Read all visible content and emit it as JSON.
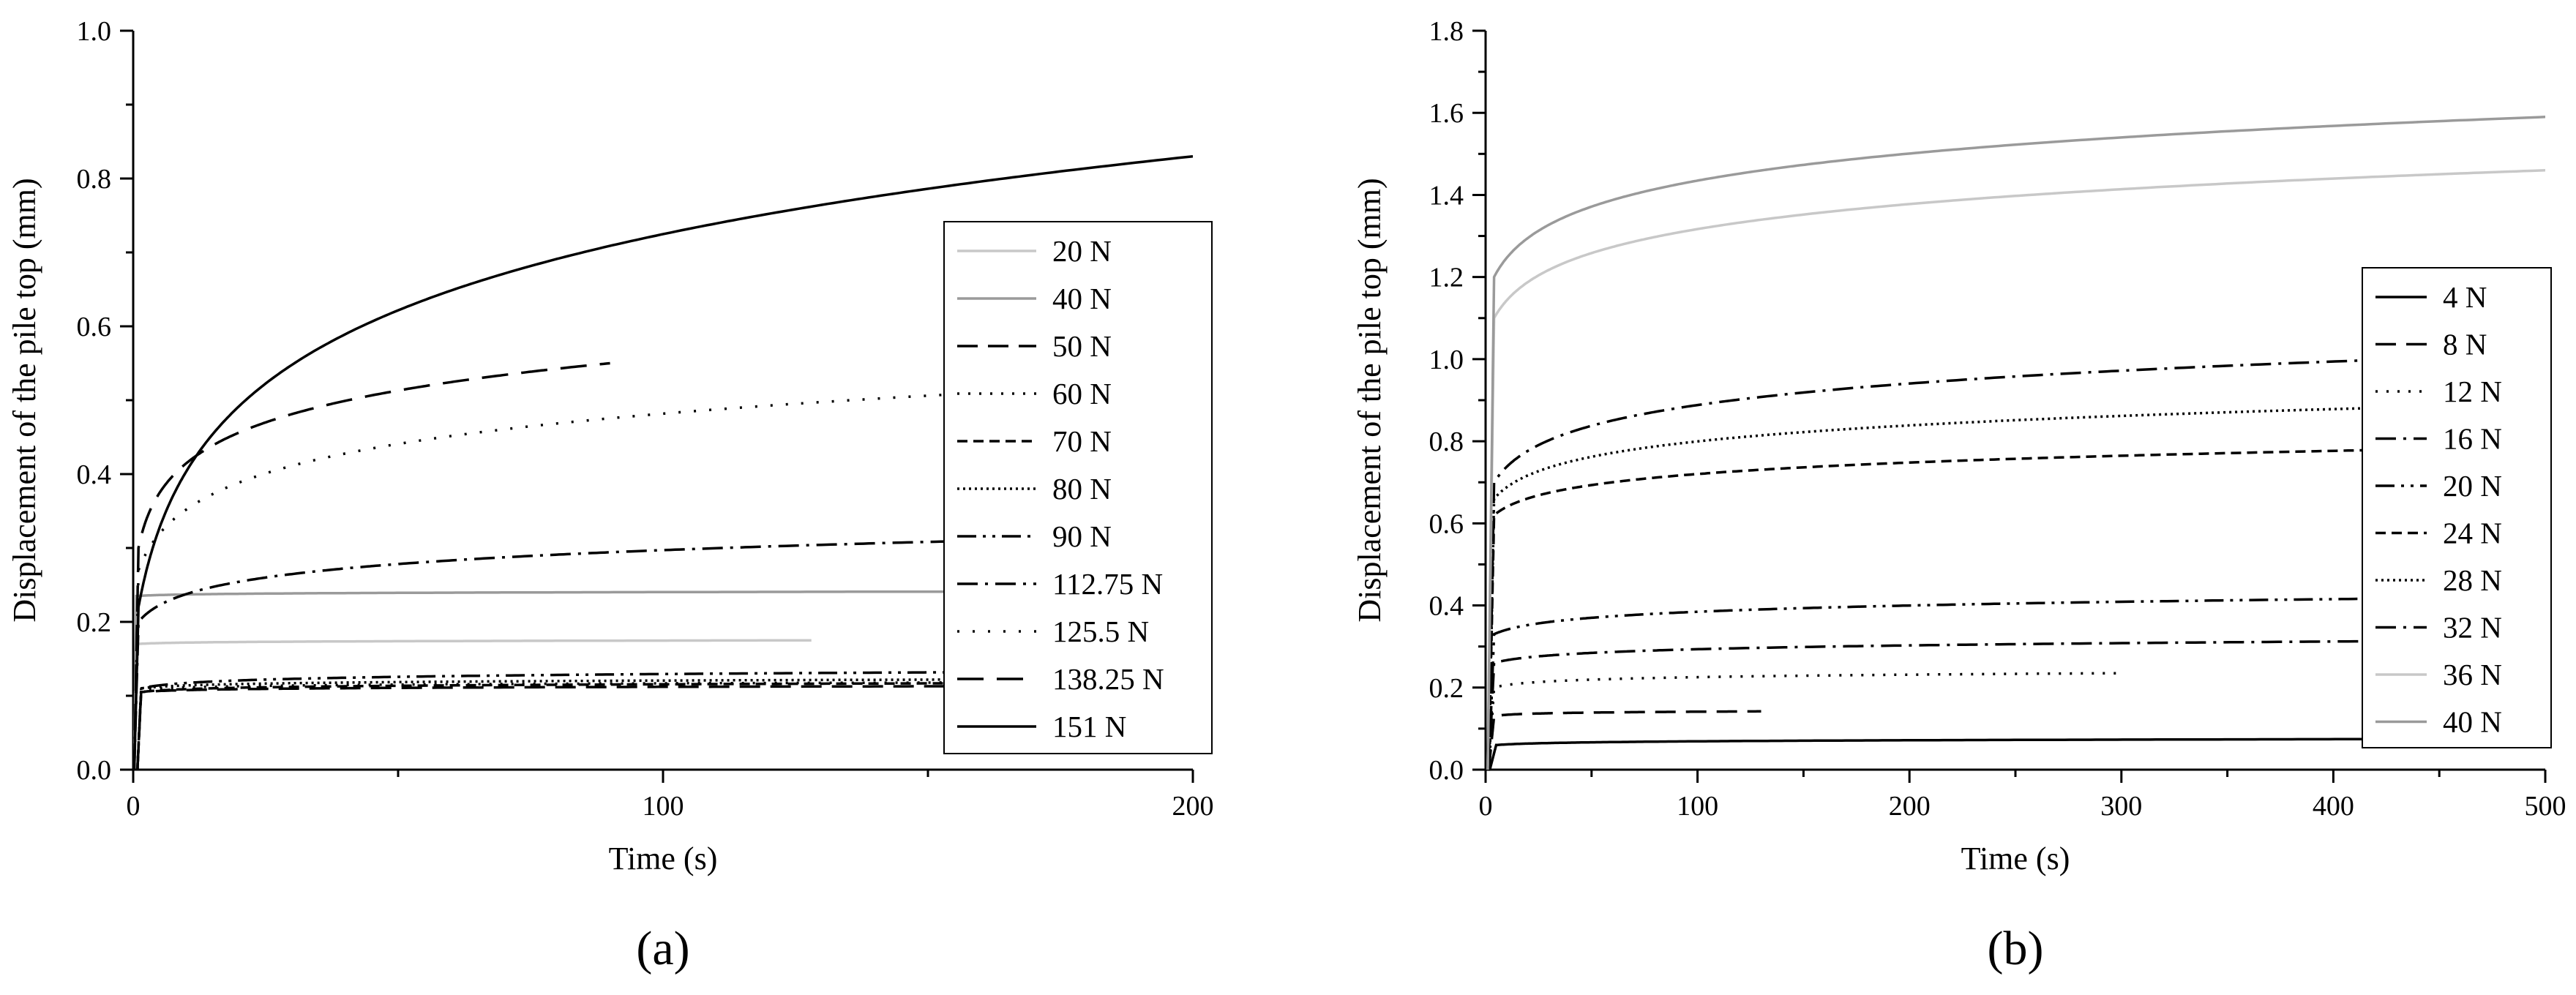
{
  "chart_data": [
    {
      "type": "line",
      "panel_label": "(a)",
      "xlabel": "Time (s)",
      "ylabel": "Displacement of the pile top (mm)",
      "xlim": [
        0,
        200
      ],
      "ylim": [
        0,
        1.0
      ],
      "x_ticks": [
        0,
        100,
        200
      ],
      "x_tick_labels": [
        "0",
        "100",
        "200"
      ],
      "y_ticks": [
        0,
        0.2,
        0.4,
        0.6,
        0.8,
        1.0
      ],
      "y_tick_labels": [
        "0.0",
        "0.2",
        "0.4",
        "0.6",
        "0.8",
        "1.0"
      ],
      "legend_position": "right",
      "series": [
        {
          "name": "20 N",
          "color": "#c8c8c8",
          "style": "solid",
          "start": 0.2,
          "rise_end": 0.6,
          "final_x": 128,
          "level": 0.17,
          "creep": 0.005
        },
        {
          "name": "40 N",
          "color": "#9a9a9a",
          "style": "solid",
          "start": 0.2,
          "rise_end": 0.6,
          "final_x": 160,
          "level": 0.235,
          "creep": 0.006
        },
        {
          "name": "50 N",
          "color": "#000000",
          "style": "dash",
          "start": 0.8,
          "rise_end": 1.5,
          "final_x": 160,
          "level": 0.105,
          "creep": 0.008
        },
        {
          "name": "60 N",
          "color": "#000000",
          "style": "dot",
          "start": 0.8,
          "rise_end": 1.5,
          "final_x": 160,
          "level": 0.108,
          "creep": 0.01
        },
        {
          "name": "70 N",
          "color": "#000000",
          "style": "shortdash",
          "start": 0.8,
          "rise_end": 1.5,
          "final_x": 160,
          "level": 0.105,
          "creep": 0.012
        },
        {
          "name": "80 N",
          "color": "#000000",
          "style": "densedot",
          "start": 0.8,
          "rise_end": 1.5,
          "final_x": 160,
          "level": 0.11,
          "creep": 0.012
        },
        {
          "name": "90 N",
          "color": "#000000",
          "style": "dashdotdot",
          "start": 0.8,
          "rise_end": 1.5,
          "final_x": 160,
          "level": 0.11,
          "creep": 0.022
        },
        {
          "name": "112.75 N",
          "color": "#000000",
          "style": "dashdot",
          "start": 0.2,
          "rise_end": 1.0,
          "final_x": 160,
          "level": 0.2,
          "creep": 0.11
        },
        {
          "name": "125.5 N",
          "color": "#000000",
          "style": "sparsedot",
          "start": 0.2,
          "rise_end": 1.0,
          "final_x": 160,
          "level": 0.27,
          "creep": 0.24
        },
        {
          "name": "138.25 N",
          "color": "#000000",
          "style": "longdash",
          "start": 0.2,
          "rise_end": 1.0,
          "final_x": 90,
          "level": 0.3,
          "creep": 0.25
        },
        {
          "name": "151 N",
          "color": "#000000",
          "style": "solid",
          "start": 0.2,
          "rise_end": 1.0,
          "final_x": 200,
          "level": 0.22,
          "creep": 0.61
        }
      ]
    },
    {
      "type": "line",
      "panel_label": "(b)",
      "xlabel": "Time (s)",
      "ylabel": "Displacement of the pile top (mm)",
      "xlim": [
        0,
        500
      ],
      "ylim": [
        0,
        1.8
      ],
      "x_ticks": [
        0,
        100,
        200,
        300,
        400,
        500
      ],
      "x_tick_labels": [
        "0",
        "100",
        "200",
        "300",
        "400",
        "500"
      ],
      "y_ticks": [
        0,
        0.2,
        0.4,
        0.6,
        0.8,
        1.0,
        1.2,
        1.4,
        1.6,
        1.8
      ],
      "y_tick_labels": [
        "0.0",
        "0.2",
        "0.4",
        "0.6",
        "0.8",
        "1.0",
        "1.2",
        "1.4",
        "1.6",
        "1.8"
      ],
      "legend_position": "right",
      "series": [
        {
          "name": "4 N",
          "color": "#000000",
          "style": "solid",
          "start": 2.0,
          "rise_end": 5.0,
          "final_x": 490,
          "level": 0.06,
          "creep": 0.015
        },
        {
          "name": "8 N",
          "color": "#000000",
          "style": "dash",
          "start": 1.5,
          "rise_end": 4.0,
          "final_x": 130,
          "level": 0.13,
          "creep": 0.012
        },
        {
          "name": "12 N",
          "color": "#000000",
          "style": "dot",
          "start": 1.5,
          "rise_end": 4.0,
          "final_x": 300,
          "level": 0.2,
          "creep": 0.035
        },
        {
          "name": "16 N",
          "color": "#000000",
          "style": "dashdot",
          "start": 1.5,
          "rise_end": 4.0,
          "final_x": 490,
          "level": 0.26,
          "creep": 0.055
        },
        {
          "name": "20 N",
          "color": "#000000",
          "style": "dashdotdot",
          "start": 1.5,
          "rise_end": 4.0,
          "final_x": 490,
          "level": 0.33,
          "creep": 0.09
        },
        {
          "name": "24 N",
          "color": "#000000",
          "style": "shortdash",
          "start": 1.5,
          "rise_end": 4.0,
          "final_x": 490,
          "level": 0.62,
          "creep": 0.165
        },
        {
          "name": "28 N",
          "color": "#000000",
          "style": "densedot",
          "start": 1.5,
          "rise_end": 4.0,
          "final_x": 490,
          "level": 0.66,
          "creep": 0.23
        },
        {
          "name": "32 N",
          "color": "#000000",
          "style": "dashdot",
          "start": 1.5,
          "rise_end": 4.0,
          "final_x": 490,
          "level": 0.7,
          "creep": 0.31
        },
        {
          "name": "36 N",
          "color": "#c8c8c8",
          "style": "solid",
          "start": 1.0,
          "rise_end": 4.0,
          "final_x": 500,
          "level": 1.1,
          "creep": 0.36
        },
        {
          "name": "40 N",
          "color": "#9a9a9a",
          "style": "solid",
          "start": 1.0,
          "rise_end": 4.0,
          "final_x": 500,
          "level": 1.2,
          "creep": 0.39
        }
      ]
    }
  ]
}
